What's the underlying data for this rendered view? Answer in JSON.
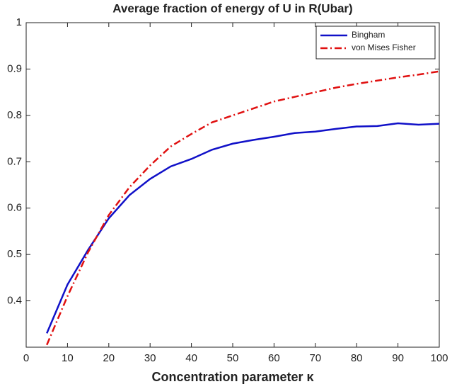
{
  "chart_data": {
    "type": "line",
    "title": "Average fraction of energy of U in R(Ubar)",
    "x_label": "Concentration parameter κ",
    "x": [
      5,
      10,
      15,
      20,
      25,
      30,
      35,
      40,
      45,
      50,
      55,
      60,
      65,
      70,
      75,
      80,
      85,
      90,
      95,
      100
    ],
    "series": [
      {
        "name": "Bingham",
        "color": "#1010c8",
        "dash": "solid",
        "values": [
          0.33,
          0.435,
          0.51,
          0.578,
          0.628,
          0.663,
          0.69,
          0.706,
          0.726,
          0.739,
          0.747,
          0.754,
          0.762,
          0.765,
          0.771,
          0.776,
          0.777,
          0.783,
          0.78,
          0.782
        ]
      },
      {
        "name": "von Mises Fisher",
        "color": "#e01010",
        "dash": "dashdot",
        "values": [
          0.305,
          0.41,
          0.505,
          0.585,
          0.645,
          0.692,
          0.733,
          0.76,
          0.785,
          0.8,
          0.815,
          0.83,
          0.84,
          0.85,
          0.86,
          0.868,
          0.875,
          0.882,
          0.888,
          0.895
        ]
      }
    ],
    "xlim": [
      0,
      100
    ],
    "xticks": [
      0,
      10,
      20,
      30,
      40,
      50,
      60,
      70,
      80,
      90,
      100
    ],
    "ylim": [
      0.3,
      1
    ],
    "yticks": [
      0.4,
      0.5,
      0.6,
      0.7,
      0.8,
      0.9,
      1
    ],
    "legend": "top-right"
  }
}
